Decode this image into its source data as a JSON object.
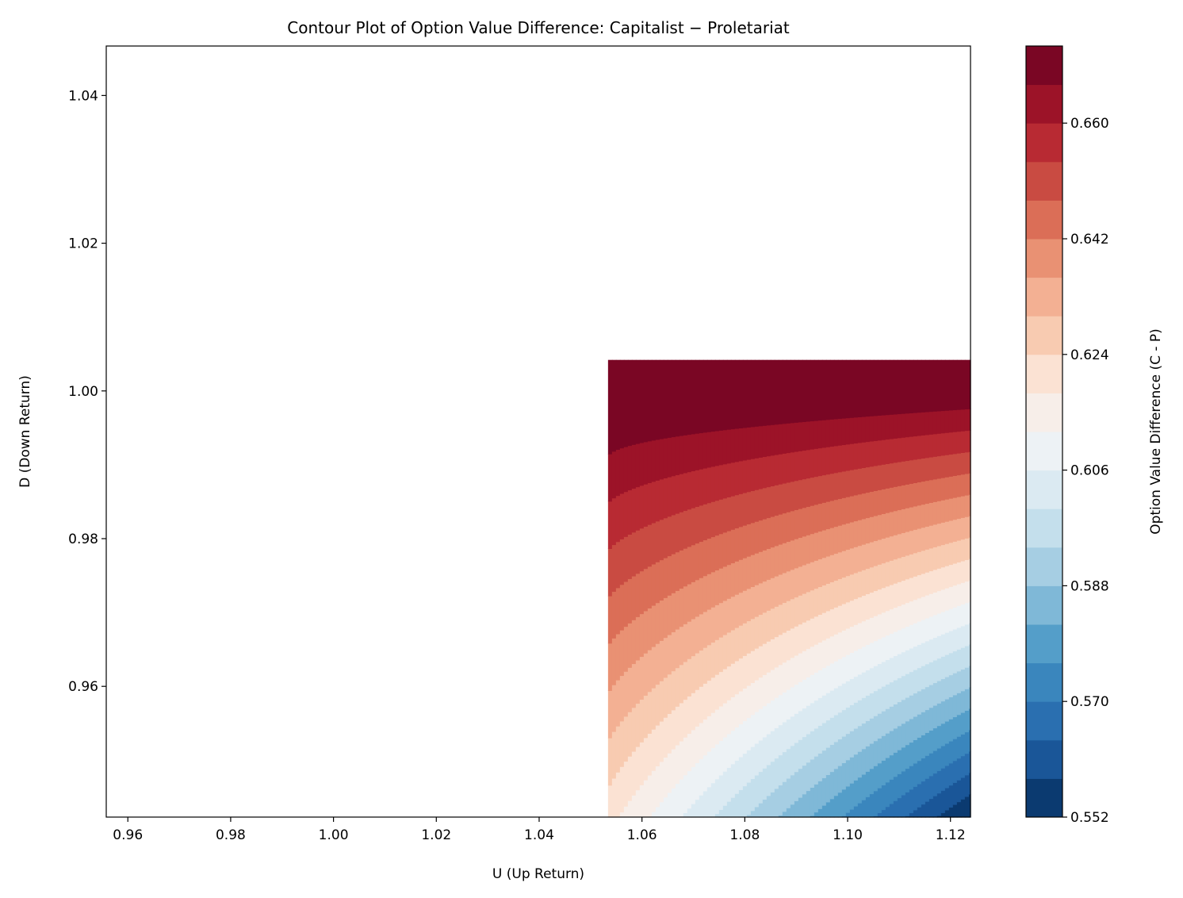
{
  "chart_data": {
    "type": "contourf",
    "title": "Contour Plot of Option Value Difference: Capitalist − Proletariat",
    "xlabel": "U (Up Return)",
    "ylabel": "D (Down Return)",
    "xlim": [
      0.9558,
      1.1239
    ],
    "ylim": [
      0.9423,
      1.0467
    ],
    "xticks": [
      "0.96",
      "0.98",
      "1.00",
      "1.02",
      "1.04",
      "1.06",
      "1.08",
      "1.10",
      "1.12"
    ],
    "yticks": [
      "0.96",
      "0.98",
      "1.00",
      "1.02",
      "1.04"
    ],
    "data_extent": {
      "u": [
        1.0534,
        1.1239
      ],
      "d": [
        0.9423,
        1.0042
      ]
    },
    "approx_values": {
      "top_left": 0.672,
      "bottom_left": 0.615,
      "top_right": 0.672,
      "bottom_right": 0.553
    },
    "levels_min": 0.552,
    "levels_step": 0.006,
    "levels_count": 20,
    "colorbar": {
      "label": "Option Value Difference (C - P)",
      "ticks": [
        "0.552",
        "0.570",
        "0.588",
        "0.606",
        "0.624",
        "0.642",
        "0.660"
      ],
      "range": [
        0.552,
        0.672
      ],
      "colormap": "RdBu_r",
      "colors": [
        "#0b3a70",
        "#1a5698",
        "#2a6fb0",
        "#3a86bd",
        "#549ec9",
        "#7fb8d7",
        "#a6cee3",
        "#c4dfec",
        "#dbeaf2",
        "#edf2f5",
        "#f7eee9",
        "#fbe2d3",
        "#f8cbb1",
        "#f3b093",
        "#e99173",
        "#db6e57",
        "#c94b42",
        "#b82a33",
        "#9c1328",
        "#7a0624"
      ]
    }
  }
}
